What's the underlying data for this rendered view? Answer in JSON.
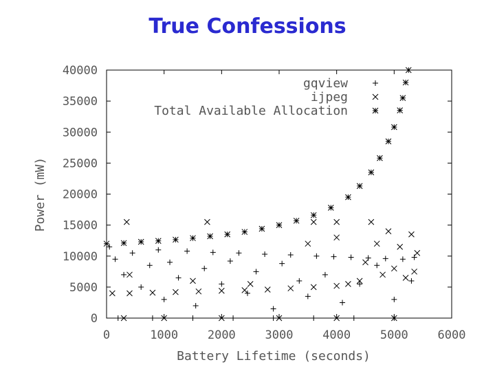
{
  "chart_data": {
    "type": "scatter",
    "title": "True Confessions",
    "x_label": "Battery Lifetime (seconds)",
    "y_label": "Power (mW)",
    "xlim": [
      0,
      6000
    ],
    "ylim": [
      0,
      40000
    ],
    "xticks": [
      0,
      1000,
      2000,
      3000,
      4000,
      5000,
      6000
    ],
    "yticks": [
      0,
      5000,
      10000,
      15000,
      20000,
      25000,
      30000,
      35000,
      40000
    ],
    "legend_position": "upper-right",
    "series": [
      {
        "name": "gqview",
        "marker": "plus",
        "color": "#000000",
        "x": [
          50,
          150,
          300,
          450,
          600,
          750,
          900,
          1000,
          1100,
          1250,
          1400,
          1550,
          1700,
          1850,
          2000,
          2150,
          2300,
          2450,
          2600,
          2750,
          2900,
          3050,
          3200,
          3350,
          3500,
          3650,
          3800,
          3950,
          4100,
          4250,
          4400,
          4550,
          4700,
          4850,
          5000,
          5150,
          5300,
          5350,
          200,
          800,
          1500,
          2200,
          2900,
          3600,
          4300,
          5000
        ],
        "values": [
          11500,
          9500,
          7000,
          10500,
          5000,
          8500,
          11000,
          3000,
          9000,
          6500,
          10800,
          2000,
          8000,
          10600,
          5500,
          9200,
          10500,
          4000,
          7500,
          10300,
          1500,
          8800,
          10200,
          6000,
          3500,
          10000,
          7000,
          9900,
          2500,
          9800,
          5500,
          9700,
          8500,
          9600,
          3000,
          9500,
          6000,
          9800,
          0,
          0,
          0,
          0,
          0,
          0,
          0,
          0
        ]
      },
      {
        "name": "ijpeg",
        "marker": "cross",
        "color": "#000000",
        "x": [
          100,
          350,
          400,
          800,
          1200,
          1600,
          1750,
          2000,
          2400,
          2800,
          3200,
          3600,
          3600,
          4000,
          4000,
          4200,
          4400,
          4500,
          4600,
          4700,
          4800,
          4900,
          5000,
          5100,
          5200,
          5300,
          5350,
          5400,
          300,
          1000,
          2000,
          3000,
          4000,
          5000,
          400,
          1500,
          2500,
          3500,
          4000
        ],
        "values": [
          4000,
          15500,
          4000,
          4100,
          4200,
          4300,
          15500,
          4400,
          4500,
          4600,
          4800,
          15500,
          5000,
          5200,
          15500,
          5500,
          6000,
          9000,
          15500,
          12000,
          7000,
          14000,
          8000,
          11500,
          6500,
          13500,
          7500,
          10500,
          0,
          0,
          0,
          0,
          0,
          0,
          7000,
          6000,
          5500,
          12000,
          13000
        ]
      },
      {
        "name": "Total Available Allocation",
        "marker": "star",
        "color": "#000000",
        "x": [
          0,
          300,
          600,
          900,
          1200,
          1500,
          1800,
          2100,
          2400,
          2700,
          3000,
          3300,
          3600,
          3900,
          4200,
          4400,
          4600,
          4750,
          4900,
          5000,
          5100,
          5150,
          5200,
          5250
        ],
        "values": [
          12000,
          12100,
          12300,
          12450,
          12650,
          12900,
          13200,
          13500,
          13900,
          14400,
          15000,
          15700,
          16600,
          17800,
          19500,
          21300,
          23500,
          25800,
          28500,
          30800,
          33500,
          35500,
          38000,
          40000
        ]
      }
    ]
  }
}
